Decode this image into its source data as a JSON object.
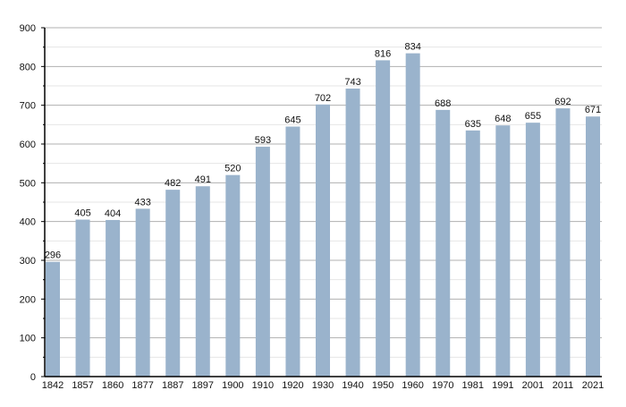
{
  "chart_data": {
    "type": "bar",
    "title": "",
    "xlabel": "",
    "ylabel": "",
    "ylim": [
      0,
      900
    ],
    "yticks": [
      0,
      100,
      200,
      300,
      400,
      500,
      600,
      700,
      800,
      900
    ],
    "grid": true,
    "bar_color": "#9ab3cc",
    "categories": [
      "1842",
      "1857",
      "1860",
      "1877",
      "1887",
      "1897",
      "1900",
      "1910",
      "1920",
      "1930",
      "1940",
      "1950",
      "1960",
      "1970",
      "1981",
      "1991",
      "2001",
      "2011",
      "2021"
    ],
    "values": [
      296,
      405,
      404,
      433,
      482,
      491,
      520,
      593,
      645,
      702,
      743,
      816,
      834,
      688,
      635,
      648,
      655,
      692,
      671
    ]
  }
}
